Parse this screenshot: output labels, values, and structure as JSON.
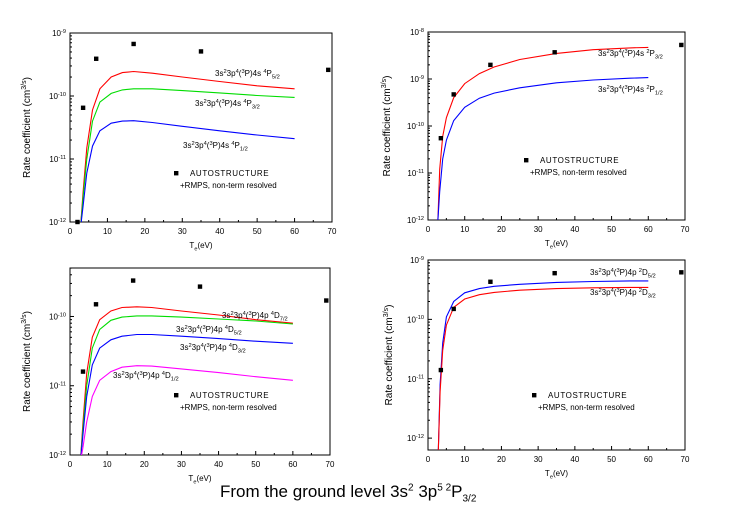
{
  "caption": {
    "prefix": "From the ground level 3s",
    "sup1": "2",
    "mid": " 3p",
    "sup2": "5 2",
    "term": "P",
    "sub": "3/2"
  },
  "colors": {
    "red": "#ff0000",
    "green": "#00dd00",
    "blue": "#0000ff",
    "magenta": "#ff00ff",
    "points": "#000000"
  },
  "chart_data": [
    {
      "type": "line",
      "panel": "top-left",
      "xlabel": "T_e(eV)",
      "ylabel": "Rate coefficient (cm^3/s)",
      "xlim": [
        0,
        70
      ],
      "ylim_log10": [
        -12,
        -9
      ],
      "x_ticks": [
        "0",
        "10",
        "20",
        "30",
        "40",
        "50",
        "60",
        "70"
      ],
      "y_ticks": [
        "10^-12",
        "10^-11",
        "10^-10",
        "10^-9"
      ],
      "series": [
        {
          "name": "3s^2 3p^4(^3P)4s ^4P_5/2",
          "color": "red",
          "x": [
            2.8,
            3.5,
            4.5,
            6,
            8,
            11,
            14,
            17,
            22,
            30,
            40,
            50,
            60
          ],
          "y": [
            8e-13,
            3e-12,
            1.5e-11,
            6e-11,
            1.3e-10,
            2e-10,
            2.35e-10,
            2.45e-10,
            2.3e-10,
            2e-10,
            1.7e-10,
            1.45e-10,
            1.3e-10
          ]
        },
        {
          "name": "3s^2 3p^4(^3P)4s ^4P_3/2",
          "color": "green",
          "x": [
            2.8,
            3.5,
            4.5,
            6,
            8,
            11,
            14,
            17,
            22,
            30,
            40,
            50,
            60
          ],
          "y": [
            8e-13,
            2.5e-12,
            1e-11,
            4e-11,
            8e-11,
            1.1e-10,
            1.25e-10,
            1.3e-10,
            1.3e-10,
            1.22e-10,
            1.12e-10,
            1.02e-10,
            9.5e-11
          ]
        },
        {
          "name": "3s^2 3p^4(^3P)4s ^4P_1/2",
          "color": "blue",
          "x": [
            2.8,
            3.5,
            4.5,
            6,
            8,
            11,
            14,
            17,
            22,
            30,
            40,
            50,
            60
          ],
          "y": [
            8e-13,
            1.8e-12,
            6e-12,
            1.6e-11,
            2.8e-11,
            3.7e-11,
            4e-11,
            4.05e-11,
            3.8e-11,
            3.3e-11,
            2.8e-11,
            2.4e-11,
            2.1e-11
          ]
        },
        {
          "name": "AUTOSTRUCTURE +RMPS, non-term resolved",
          "color": "points",
          "mode": "markers",
          "x": [
            2,
            3.5,
            7,
            17,
            35,
            69
          ],
          "y": [
            1e-12,
            6.5e-11,
            3.9e-10,
            6.7e-10,
            5.1e-10,
            2.6e-10
          ]
        }
      ],
      "labels": [
        {
          "pre": "3s",
          "s1": "2",
          "mid": "3p",
          "s2": "4",
          "mid2": "(",
          "s3": "3",
          "tail": "P)4s ",
          "s4": "4",
          "term": "P",
          "sub": "5/2"
        },
        {
          "pre": "3s",
          "s1": "2",
          "mid": "3p",
          "s2": "4",
          "mid2": "(",
          "s3": "3",
          "tail": "P)4s ",
          "s4": "4",
          "term": "P",
          "sub": "3/2"
        },
        {
          "pre": "3s",
          "s1": "2",
          "mid": "3p",
          "s2": "4",
          "mid2": "(",
          "s3": "3",
          "tail": "P)4s ",
          "s4": "4",
          "term": "P",
          "sub": "1/2"
        }
      ],
      "legend": {
        "text1": "AUTOSTRUCTURE",
        "text2": "+RMPS, non-term resolved"
      }
    },
    {
      "type": "line",
      "panel": "top-right",
      "xlabel": "T_e(eV)",
      "ylabel": "Rate coefficient (cm^3/s)",
      "xlim": [
        0,
        70
      ],
      "ylim_log10": [
        -12,
        -8
      ],
      "x_ticks": [
        "0",
        "10",
        "20",
        "30",
        "40",
        "50",
        "60",
        "70"
      ],
      "y_ticks": [
        "10^-12",
        "10^-11",
        "10^-10",
        "10^-9",
        "10^-8"
      ],
      "series": [
        {
          "name": "3s^2 3p^4(^3P)4s ^2P_3/2",
          "color": "red",
          "x": [
            2.7,
            3.2,
            4,
            5,
            7,
            10,
            14,
            18,
            25,
            35,
            45,
            55,
            60
          ],
          "y": [
            1e-12,
            1.2e-11,
            6e-11,
            1.5e-10,
            4e-10,
            8e-10,
            1.3e-09,
            1.8e-09,
            2.6e-09,
            3.5e-09,
            4.2e-09,
            4.6e-09,
            4.7e-09
          ]
        },
        {
          "name": "3s^2 3p^4(^3P)4s ^2P_1/2",
          "color": "blue",
          "x": [
            2.7,
            3.2,
            4,
            5,
            7,
            10,
            14,
            18,
            25,
            35,
            45,
            55,
            60
          ],
          "y": [
            1e-12,
            4e-12,
            2e-11,
            5e-11,
            1.3e-10,
            2.5e-10,
            3.9e-10,
            5e-10,
            6.5e-10,
            8.3e-10,
            9.5e-10,
            1.04e-09,
            1.07e-09
          ]
        },
        {
          "name": "AUTOSTRUCTURE +RMPS, non-term resolved",
          "color": "points",
          "mode": "markers",
          "x": [
            3.5,
            7,
            17,
            34.5,
            69
          ],
          "y": [
            5.5e-11,
            4.7e-10,
            2e-09,
            3.7e-09,
            5.3e-09
          ]
        }
      ],
      "labels": [
        {
          "pre": "3s",
          "s1": "2",
          "mid": "3p",
          "s2": "4",
          "mid2": "(",
          "s3": "3",
          "tail": "P)4s ",
          "s4": "2",
          "term": "P",
          "sub": "3/2"
        },
        {
          "pre": "3s",
          "s1": "2",
          "mid": "3p",
          "s2": "4",
          "mid2": "(",
          "s3": "3",
          "tail": "P)4s ",
          "s4": "2",
          "term": "P",
          "sub": "1/2"
        }
      ],
      "legend": {
        "text1": "AUTOSTRUCTURE",
        "text2": "+RMPS, non-term resolved"
      }
    },
    {
      "type": "line",
      "panel": "bottom-left",
      "xlabel": "T_e(eV)",
      "ylabel": "Rate coefficient (cm^3/s)",
      "xlim": [
        0,
        70
      ],
      "ylim_log10": [
        -12,
        -9.3
      ],
      "x_ticks": [
        "0",
        "10",
        "20",
        "30",
        "40",
        "50",
        "60",
        "70"
      ],
      "y_ticks": [
        "10^-12",
        "10^-11",
        "10^-10"
      ],
      "series": [
        {
          "name": "3s^2 3p^4(^3P)4p ^4D_7/2",
          "color": "red",
          "x": [
            2.8,
            3.5,
            4.5,
            6,
            8,
            11,
            14,
            18,
            22,
            30,
            40,
            50,
            60
          ],
          "y": [
            8e-13,
            3e-12,
            1.5e-11,
            5e-11,
            9e-11,
            1.2e-10,
            1.35e-10,
            1.38e-10,
            1.35e-10,
            1.2e-10,
            1.05e-10,
            9e-11,
            8e-11
          ]
        },
        {
          "name": "3s^2 3p^4(^3P)4p ^4D_5/2",
          "color": "green",
          "x": [
            2.8,
            3.5,
            4.5,
            6,
            8,
            11,
            14,
            18,
            22,
            30,
            40,
            50,
            60
          ],
          "y": [
            8e-13,
            2.5e-12,
            1e-11,
            3.5e-11,
            6.5e-11,
            8.8e-11,
            9.8e-11,
            1.02e-10,
            1.02e-10,
            9.8e-11,
            9.2e-11,
            8.6e-11,
            7.8e-11
          ]
        },
        {
          "name": "3s^2 3p^4(^3P)4p ^4D_3/2",
          "color": "blue",
          "x": [
            2.8,
            3.5,
            4.5,
            6,
            8,
            11,
            14,
            18,
            22,
            30,
            40,
            50,
            60
          ],
          "y": [
            8e-13,
            2e-12,
            7e-12,
            2e-11,
            3.5e-11,
            4.6e-11,
            5.2e-11,
            5.5e-11,
            5.5e-11,
            5.2e-11,
            4.8e-11,
            4.4e-11,
            4.1e-11
          ]
        },
        {
          "name": "3s^2 3p^4(^3P)4p ^4D_1/2",
          "color": "magenta",
          "x": [
            2.8,
            3.5,
            4.5,
            6,
            8,
            11,
            14,
            18,
            22,
            30,
            40,
            50,
            60
          ],
          "y": [
            8e-13,
            1.3e-12,
            3e-12,
            7e-12,
            1.2e-11,
            1.6e-11,
            1.85e-11,
            1.95e-11,
            1.92e-11,
            1.75e-11,
            1.55e-11,
            1.35e-11,
            1.2e-11
          ]
        },
        {
          "name": "AUTOSTRUCTURE +RMPS, non-term resolved",
          "color": "points",
          "mode": "markers",
          "x": [
            3.5,
            7,
            17,
            35,
            69
          ],
          "y": [
            1.6e-11,
            1.5e-10,
            3.3e-10,
            2.7e-10,
            1.7e-10
          ]
        }
      ],
      "labels": [
        {
          "pre": "3s",
          "s1": "2",
          "mid": "3p",
          "s2": "4",
          "mid2": "(",
          "s3": "3",
          "tail": "P)4p ",
          "s4": "4",
          "term": "D",
          "sub": "7/2"
        },
        {
          "pre": "3s",
          "s1": "2",
          "mid": "3p",
          "s2": "4",
          "mid2": "(",
          "s3": "3",
          "tail": "P)4p ",
          "s4": "4",
          "term": "D",
          "sub": "5/2"
        },
        {
          "pre": "3s",
          "s1": "2",
          "mid": "3p",
          "s2": "4",
          "mid2": "(",
          "s3": "3",
          "tail": "P)4p ",
          "s4": "4",
          "term": "D",
          "sub": "3/2"
        },
        {
          "pre": "3s",
          "s1": "2",
          "mid": "3p",
          "s2": "4",
          "mid2": "(",
          "s3": "3",
          "tail": "P)4p ",
          "s4": "4",
          "term": "D",
          "sub": "1/2"
        }
      ],
      "legend": {
        "text1": "AUTOSTRUCTURE",
        "text2": "+RMPS, non-term resolved"
      }
    },
    {
      "type": "line",
      "panel": "bottom-right",
      "xlabel": "T_e(eV)",
      "ylabel": "Rate coefficient (cm^3/s)",
      "xlim": [
        0,
        70
      ],
      "ylim_log10": [
        -12.2,
        -9
      ],
      "x_ticks": [
        "0",
        "10",
        "20",
        "30",
        "40",
        "50",
        "60",
        "70"
      ],
      "y_ticks": [
        "10^-12",
        "10^-11",
        "10^-10",
        "10^-9"
      ],
      "series": [
        {
          "name": "3s^2 3p^4(^3P)4p ^2D_5/2",
          "color": "blue",
          "x": [
            2.8,
            3.3,
            4,
            5,
            7,
            10,
            14,
            18,
            25,
            35,
            45,
            55,
            60
          ],
          "y": [
            6e-13,
            8e-12,
            4e-11,
            1.1e-10,
            2e-10,
            2.8e-10,
            3.3e-10,
            3.6e-10,
            3.9e-10,
            4.2e-10,
            4.35e-10,
            4.45e-10,
            4.45e-10
          ]
        },
        {
          "name": "3s^2 3p^4(^3P)4p ^2D_3/2",
          "color": "red",
          "x": [
            2.8,
            3.3,
            4,
            5,
            7,
            10,
            14,
            18,
            25,
            35,
            45,
            55,
            60
          ],
          "y": [
            6e-13,
            6e-12,
            3e-11,
            8e-11,
            1.6e-10,
            2.2e-10,
            2.6e-10,
            2.85e-10,
            3.1e-10,
            3.3e-10,
            3.4e-10,
            3.45e-10,
            3.45e-10
          ]
        },
        {
          "name": "AUTOSTRUCTURE +RMPS, non-term resolved",
          "color": "points",
          "mode": "markers",
          "x": [
            3.5,
            7,
            17,
            34.5,
            69
          ],
          "y": [
            1.4e-11,
            1.5e-10,
            4.3e-10,
            6e-10,
            6.2e-10
          ]
        }
      ],
      "labels": [
        {
          "pre": "3s",
          "s1": "2",
          "mid": "3p",
          "s2": "4",
          "mid2": "(",
          "s3": "3",
          "tail": "P)4p ",
          "s4": "2",
          "term": "D",
          "sub": "5/2"
        },
        {
          "pre": "3s",
          "s1": "2",
          "mid": "3p",
          "s2": "4",
          "mid2": "(",
          "s3": "3",
          "tail": "P)4p ",
          "s4": "2",
          "term": "D",
          "sub": "3/2"
        }
      ],
      "legend": {
        "text1": "AUTOSTRUCTURE",
        "text2": "+RMPS, non-term resolved"
      }
    }
  ]
}
